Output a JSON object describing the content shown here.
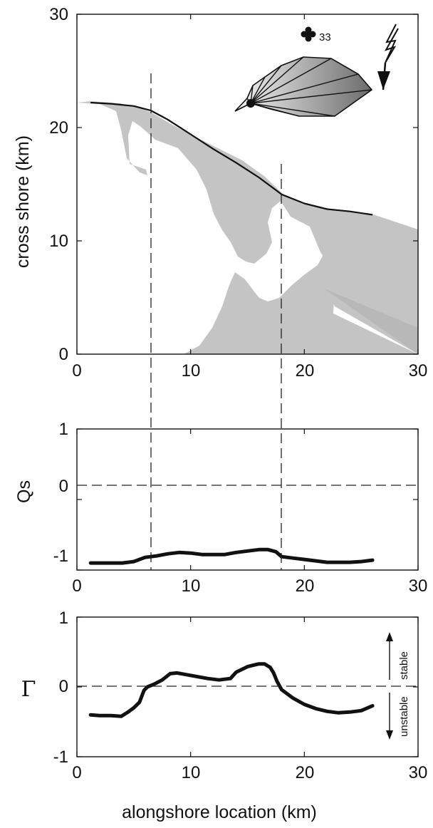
{
  "figure": {
    "x_axis_title": "alongshore location (km)"
  },
  "chart_data": [
    {
      "type": "area",
      "ylabel": "cross shore (km)",
      "xlim": [
        0,
        30
      ],
      "ylim": [
        0,
        30
      ],
      "xticks": [
        "0",
        "10",
        "20",
        "30"
      ],
      "yticks": [
        "0",
        "10",
        "20",
        "30"
      ],
      "shoreline": {
        "x": [
          1.2,
          3,
          5,
          6.5,
          8,
          10,
          12,
          14,
          16,
          18,
          20,
          22,
          24,
          26
        ],
        "y": [
          22.2,
          22.1,
          21.9,
          21.5,
          20.7,
          19.4,
          18.1,
          16.9,
          15.6,
          14.1,
          13.3,
          12.8,
          12.6,
          12.3
        ]
      },
      "land_color": "#c4c4c4",
      "wave_climate_rose": {
        "label": "33",
        "rose_color": "#8a8a8a"
      },
      "north_arrow": "lightning-style-north-arrow"
    },
    {
      "type": "line",
      "ylabel": "Qs",
      "xlim": [
        0,
        30
      ],
      "ylim": [
        -1,
        1
      ],
      "xticks": [
        "0",
        "10",
        "20",
        "30"
      ],
      "yticks": [
        "-1",
        "0",
        "1"
      ],
      "series": [
        {
          "x": [
            1.2,
            3,
            4,
            5,
            6,
            7,
            8,
            9,
            10,
            11,
            12,
            13,
            14,
            15,
            16,
            16.8,
            17.5,
            18,
            19,
            20,
            21,
            22,
            23,
            24,
            25,
            26
          ],
          "values": [
            -0.9,
            -0.9,
            -0.9,
            -0.88,
            -0.82,
            -0.8,
            -0.77,
            -0.75,
            -0.76,
            -0.78,
            -0.78,
            -0.78,
            -0.75,
            -0.73,
            -0.71,
            -0.71,
            -0.74,
            -0.81,
            -0.83,
            -0.85,
            -0.87,
            -0.89,
            -0.89,
            -0.89,
            -0.88,
            -0.86
          ]
        }
      ]
    },
    {
      "type": "line",
      "ylabel": "Γ",
      "xlim": [
        0,
        30
      ],
      "ylim": [
        -1,
        1
      ],
      "xticks": [
        "0",
        "10",
        "20",
        "30"
      ],
      "yticks": [
        "-1",
        "0",
        "1"
      ],
      "annotations": {
        "stable": "stable",
        "unstable": "unstable"
      },
      "series": [
        {
          "x": [
            1.2,
            2,
            3,
            3.9,
            4.5,
            5,
            5.5,
            5.9,
            6.2,
            6.8,
            7.5,
            8.2,
            8.8,
            9.5,
            10.5,
            11.5,
            12.5,
            13.5,
            14,
            14.5,
            15,
            15.5,
            16,
            16.5,
            17,
            17.3,
            17.6,
            18,
            18.5,
            19,
            20,
            21,
            22,
            23,
            24,
            25,
            26
          ],
          "values": [
            -0.4,
            -0.41,
            -0.41,
            -0.42,
            -0.36,
            -0.3,
            -0.22,
            -0.05,
            0.0,
            0.04,
            0.1,
            0.19,
            0.2,
            0.18,
            0.15,
            0.12,
            0.1,
            0.12,
            0.21,
            0.25,
            0.29,
            0.31,
            0.33,
            0.33,
            0.28,
            0.2,
            0.08,
            -0.04,
            -0.1,
            -0.16,
            -0.25,
            -0.31,
            -0.35,
            -0.37,
            -0.36,
            -0.34,
            -0.27
          ]
        }
      ]
    }
  ]
}
